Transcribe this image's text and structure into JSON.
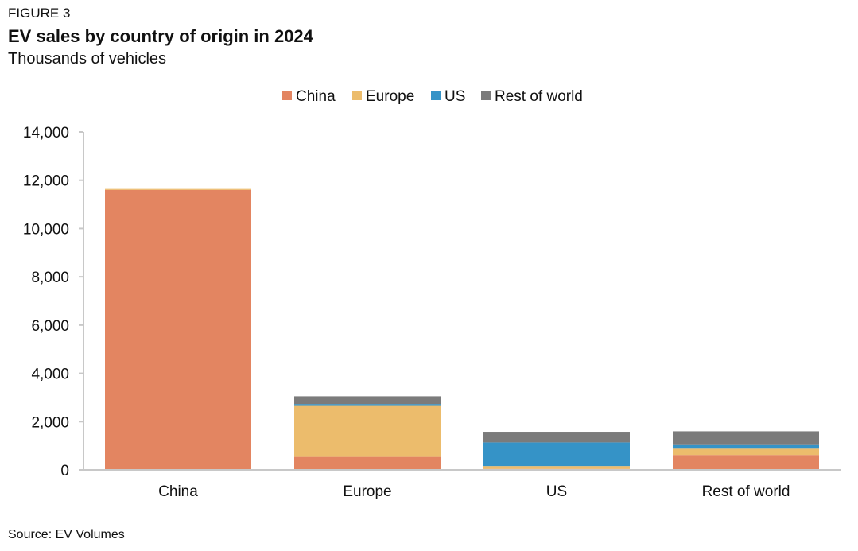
{
  "figure_label": "FIGURE 3",
  "source": "Source: EV Volumes",
  "colors": {
    "China": "#e38561",
    "Europe": "#ecbc6c",
    "US": "#3593c7",
    "Rest of world": "#7b7b7b",
    "axis": "#c8c8c8"
  },
  "chart_data": {
    "type": "bar",
    "stacked": true,
    "title": "EV sales by country of origin in 2024",
    "subtitle": "Thousands of vehicles",
    "xlabel": "",
    "ylabel": "",
    "categories": [
      "China",
      "Europe",
      "US",
      "Rest of world"
    ],
    "series": [
      {
        "name": "China",
        "values": [
          11600,
          540,
          40,
          620
        ]
      },
      {
        "name": "Europe",
        "values": [
          40,
          2110,
          120,
          260
        ]
      },
      {
        "name": "US",
        "values": [
          0,
          80,
          980,
          150
        ]
      },
      {
        "name": "Rest of world",
        "values": [
          0,
          320,
          440,
          570
        ]
      }
    ],
    "ylim": [
      0,
      14000
    ],
    "yticks": [
      0,
      2000,
      4000,
      6000,
      8000,
      10000,
      12000,
      14000
    ],
    "ytick_labels": [
      "0",
      "2,000",
      "4,000",
      "6,000",
      "8,000",
      "10,000",
      "12,000",
      "14,000"
    ],
    "grid": false,
    "legend_position": "top-center"
  }
}
